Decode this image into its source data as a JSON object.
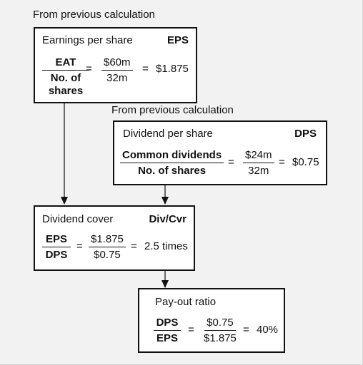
{
  "captions": {
    "top": "From previous calculation",
    "middle": "From previous calculation"
  },
  "eps_box": {
    "title": "Earnings per share",
    "abbr": "EPS",
    "frac_label": {
      "num": "EAT",
      "den_line1": "No. of",
      "den_line2": "shares"
    },
    "eq1": "=",
    "frac_value": {
      "num": "$60m",
      "den": "32m"
    },
    "eq2": "=",
    "result": "$1.875"
  },
  "dps_box": {
    "title": "Dividend per share",
    "abbr": "DPS",
    "frac_label": {
      "num": "Common dividends",
      "den": "No. of shares"
    },
    "eq1": "=",
    "frac_value": {
      "num": "$24m",
      "den": "32m"
    },
    "eq2": "=",
    "result": "$0.75"
  },
  "cover_box": {
    "title": "Dividend cover",
    "abbr": "Div/Cvr",
    "frac_label": {
      "num": "EPS",
      "den": "DPS"
    },
    "eq1": "=",
    "frac_value": {
      "num": "$1.875",
      "den": "$0.75"
    },
    "eq2": "=",
    "result": "2.5 times"
  },
  "payout_box": {
    "title": "Pay-out ratio",
    "frac_label": {
      "num": "DPS",
      "den": "EPS"
    },
    "eq1": "=",
    "frac_value": {
      "num": "$0.75",
      "den": "$1.875"
    },
    "eq2": "=",
    "result": "40%"
  },
  "colors": {
    "background": "#f2f2f2",
    "box_fill": "#ffffff",
    "stroke": "#111111"
  }
}
